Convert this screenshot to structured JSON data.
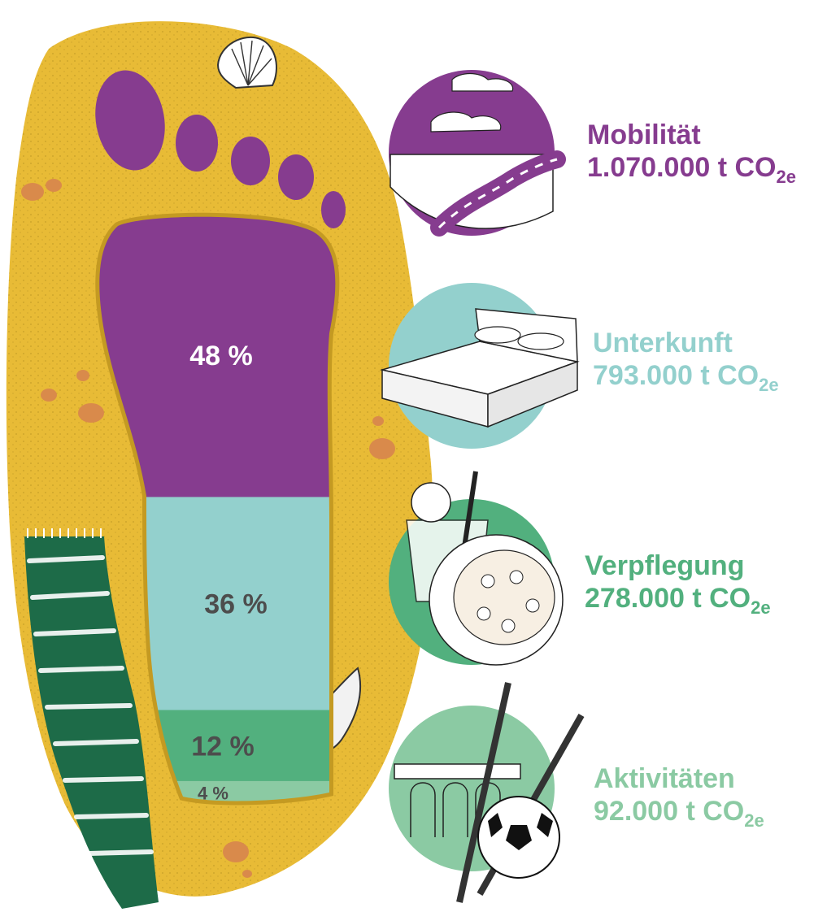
{
  "chart_data": {
    "type": "bar",
    "categories": [
      "Mobilität",
      "Unterkunft",
      "Verpflegung",
      "Aktivitäten"
    ],
    "values": [
      48,
      36,
      12,
      4
    ],
    "value_labels": [
      "48 %",
      "36 %",
      "12 %",
      "4 %"
    ],
    "amounts": [
      "1.070.000",
      "793.000",
      "278.000",
      "92.000"
    ],
    "unit_prefix": "t CO",
    "unit_sub": "2e",
    "colors": [
      "#863c8f",
      "#93d0cd",
      "#52b07e",
      "#8bcaa3"
    ],
    "label_colors": [
      "#863c8f",
      "#93d0cd",
      "#52b07e",
      "#8bcaa3"
    ],
    "pct_text_colors": [
      "#ffffff",
      "#4d4d4d",
      "#4d4d4d",
      "#4d4d4d"
    ],
    "icons": [
      "road-icon",
      "bed-icon",
      "food-drink-icon",
      "sports-icon"
    ]
  },
  "colors": {
    "sand": "#e8bb36",
    "sand_dark": "#c49a22",
    "towel": "#1d6b48",
    "pebble": "#d98a4b"
  }
}
